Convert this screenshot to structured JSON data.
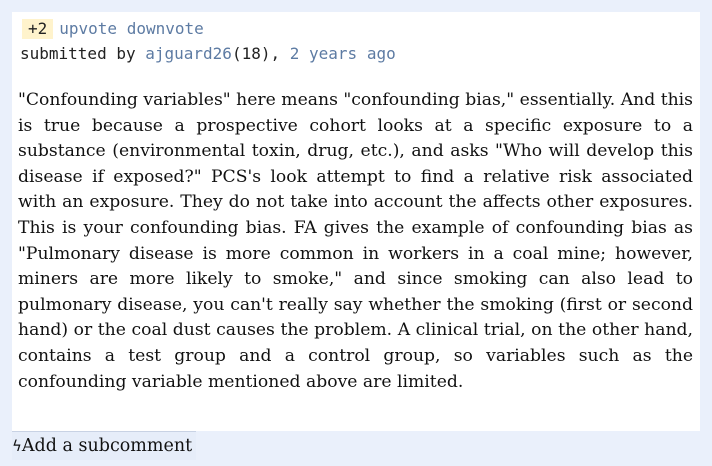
{
  "post": {
    "score": "+2",
    "upvote_label": "upvote",
    "downvote_label": "downvote",
    "submitted_by_label": "submitted by",
    "author": "ajguard26",
    "author_points": "(18),",
    "time_ago": "2 years ago",
    "body": "\"Confounding variables\" here means \"confounding bias,\" essentially. And this is true because a prospective cohort looks at a specific exposure to a substance (environmental toxin, drug, etc.), and asks \"Who will develop this disease if exposed?\" PCS's look attempt to find a relative risk associated with an exposure. They do not take into account the affects other exposures. This is your confounding bias. FA gives the example of confounding bias as \"Pulmonary disease is more common in workers in a coal mine; however, miners are more likely to smoke,\" and since smoking can also lead to pulmonary disease, you can't really say whether the smoking (first or second hand) or the coal dust causes the problem. A clinical trial, on the other hand, contains a test group and a control group, so variables such as the confounding variable mentioned above are limited."
  },
  "actions": {
    "add_subcomment_icon": "lightning-icon",
    "add_subcomment_label": "Add a subcomment"
  },
  "colors": {
    "page_background": "#eaf0fb",
    "card_background": "#ffffff",
    "link": "#5d7ba3",
    "score_background": "#fff3cc"
  }
}
